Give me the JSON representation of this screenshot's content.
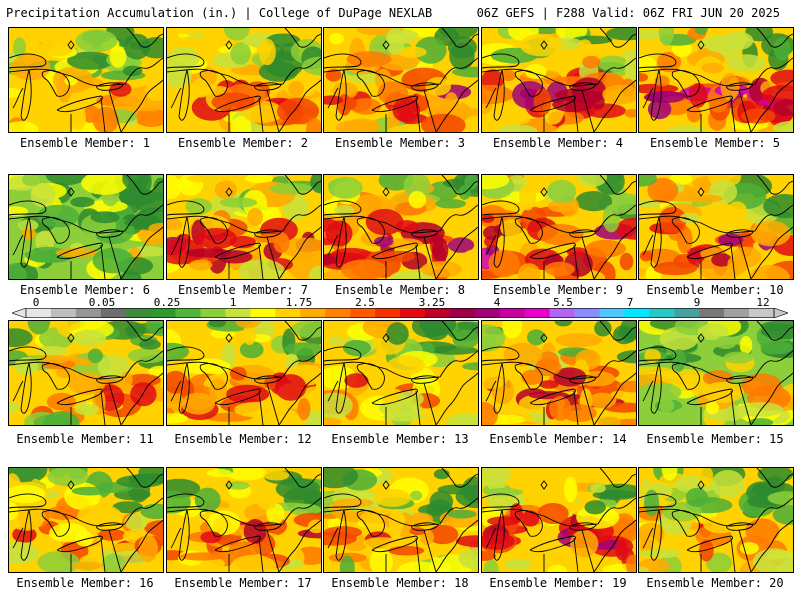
{
  "header": {
    "title_left": "Precipitation Accumulation (in.) | College of DuPage NEXLAB",
    "title_right": "06Z GEFS | F288 Valid: 06Z FRI JUN 20 2025"
  },
  "colorbar": {
    "labels": [
      "0",
      "0.05",
      "0.25",
      "1",
      "1.75",
      "2.5",
      "3.25",
      "4",
      "5.5",
      "7",
      "9",
      "12"
    ],
    "colors": [
      "#e6e6e6",
      "#bebebe",
      "#969696",
      "#6e6e6e",
      "#3c8c3c",
      "#2e9a2e",
      "#52b43a",
      "#8ccf3a",
      "#c8e23c",
      "#ffff00",
      "#ffd200",
      "#ffaa00",
      "#ff8200",
      "#ff5a00",
      "#f53200",
      "#e00a14",
      "#be0028",
      "#9c0046",
      "#a0007a",
      "#c800a0",
      "#e600c8",
      "#b464f0",
      "#8c8cff",
      "#50c8ff",
      "#00e6ff",
      "#28c8c8",
      "#46a0a0",
      "#787878",
      "#a0a0a0",
      "#c8c8c8"
    ]
  },
  "panels": [
    {
      "label": "Ensemble Member: 1",
      "wetness": 0.55
    },
    {
      "label": "Ensemble Member: 2",
      "wetness": 0.62
    },
    {
      "label": "Ensemble Member: 3",
      "wetness": 0.68
    },
    {
      "label": "Ensemble Member: 4",
      "wetness": 0.7
    },
    {
      "label": "Ensemble Member: 5",
      "wetness": 0.82
    },
    {
      "label": "Ensemble Member: 6",
      "wetness": 0.3
    },
    {
      "label": "Ensemble Member: 7",
      "wetness": 0.78
    },
    {
      "label": "Ensemble Member: 8",
      "wetness": 0.76
    },
    {
      "label": "Ensemble Member: 9",
      "wetness": 0.84
    },
    {
      "label": "Ensemble Member: 10",
      "wetness": 0.8
    },
    {
      "label": "Ensemble Member: 11",
      "wetness": 0.58
    },
    {
      "label": "Ensemble Member: 12",
      "wetness": 0.66
    },
    {
      "label": "Ensemble Member: 13",
      "wetness": 0.56
    },
    {
      "label": "Ensemble Member: 14",
      "wetness": 0.7
    },
    {
      "label": "Ensemble Member: 15",
      "wetness": 0.4
    },
    {
      "label": "Ensemble Member: 16",
      "wetness": 0.58
    },
    {
      "label": "Ensemble Member: 17",
      "wetness": 0.62
    },
    {
      "label": "Ensemble Member: 18",
      "wetness": 0.5
    },
    {
      "label": "Ensemble Member: 19",
      "wetness": 0.72
    },
    {
      "label": "Ensemble Member: 20",
      "wetness": 0.55
    }
  ]
}
